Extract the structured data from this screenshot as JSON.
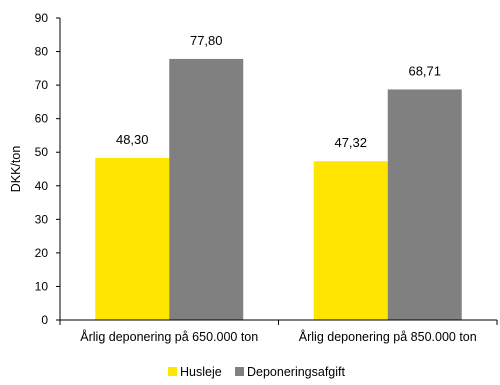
{
  "chart_data": {
    "type": "bar",
    "categories": [
      "Årlig deponering på 650.000 ton",
      "Årlig deponering på 850.000 ton"
    ],
    "series": [
      {
        "name": "Husleje",
        "values": [
          48.3,
          47.32
        ],
        "labels": [
          "48,30",
          "47,32"
        ],
        "color": "#FFE500"
      },
      {
        "name": "Deponeringsafgift",
        "values": [
          77.8,
          68.71
        ],
        "labels": [
          "77,80",
          "68,71"
        ],
        "color": "#808080"
      }
    ],
    "ylabel": "DKK/ton",
    "xlabel": "",
    "ylim": [
      0,
      90
    ],
    "yticks": [
      0,
      10,
      20,
      30,
      40,
      50,
      60,
      70,
      80,
      90
    ],
    "grid": false,
    "legend": "bottom-center"
  }
}
